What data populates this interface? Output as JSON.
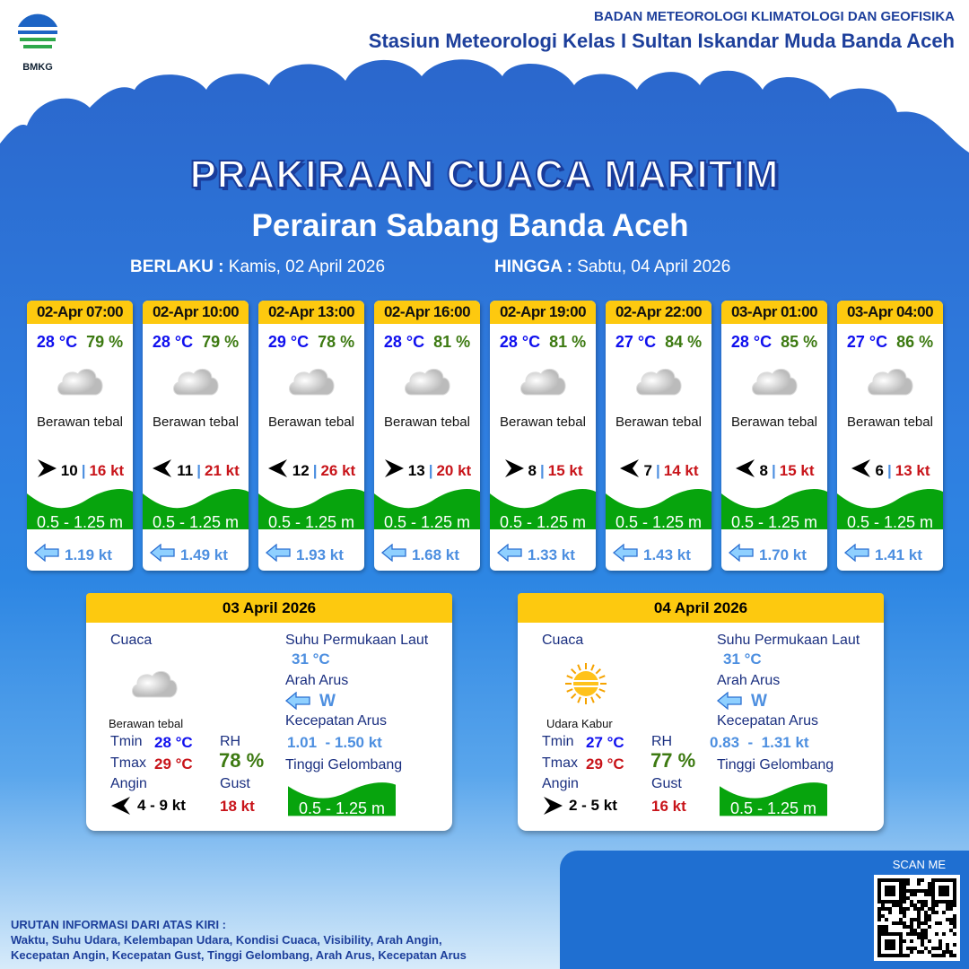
{
  "header": {
    "agency": "BADAN METEOROLOGI KLIMATOLOGI DAN GEOFISIKA",
    "station": "Stasiun Meteorologi Kelas I Sultan Iskandar Muda Banda Aceh",
    "logo_text": "BMKG"
  },
  "title": "PRAKIRAAN CUACA MARITIM",
  "subtitle": "Perairan Sabang Banda Aceh",
  "validity": {
    "from_label": "BERLAKU :",
    "from": "Kamis, 02 April 2026",
    "to_label": "HINGGA :",
    "to": "Sabtu, 04 April 2026"
  },
  "forecasts": [
    {
      "time": "02-Apr 07:00",
      "temp": "28 °C",
      "rh": "79 %",
      "icon": "cloud-icon",
      "cond": "Berawan tebal",
      "wind_dir": "right",
      "wind": "10",
      "gust": "16 kt",
      "wave": "0.5 - 1.25 m",
      "current": "1.19 kt"
    },
    {
      "time": "02-Apr 10:00",
      "temp": "28 °C",
      "rh": "79 %",
      "icon": "cloud-icon",
      "cond": "Berawan tebal",
      "wind_dir": "left",
      "wind": "11",
      "gust": "21 kt",
      "wave": "0.5 - 1.25 m",
      "current": "1.49 kt"
    },
    {
      "time": "02-Apr 13:00",
      "temp": "29 °C",
      "rh": "78 %",
      "icon": "cloud-icon",
      "cond": "Berawan tebal",
      "wind_dir": "left",
      "wind": "12",
      "gust": "26 kt",
      "wave": "0.5 - 1.25 m",
      "current": "1.93 kt"
    },
    {
      "time": "02-Apr 16:00",
      "temp": "28 °C",
      "rh": "81 %",
      "icon": "cloud-icon",
      "cond": "Berawan tebal",
      "wind_dir": "right",
      "wind": "13",
      "gust": "20 kt",
      "wave": "0.5 - 1.25 m",
      "current": "1.68 kt"
    },
    {
      "time": "02-Apr 19:00",
      "temp": "28 °C",
      "rh": "81 %",
      "icon": "cloud-icon",
      "cond": "Berawan tebal",
      "wind_dir": "right",
      "wind": "8",
      "gust": "15 kt",
      "wave": "0.5 - 1.25 m",
      "current": "1.33 kt"
    },
    {
      "time": "02-Apr 22:00",
      "temp": "27 °C",
      "rh": "84 %",
      "icon": "cloud-icon",
      "cond": "Berawan tebal",
      "wind_dir": "left",
      "wind": "7",
      "gust": "14 kt",
      "wave": "0.5 - 1.25 m",
      "current": "1.43 kt"
    },
    {
      "time": "03-Apr 01:00",
      "temp": "28 °C",
      "rh": "85 %",
      "icon": "cloud-icon",
      "cond": "Berawan tebal",
      "wind_dir": "left",
      "wind": "8",
      "gust": "15 kt",
      "wave": "0.5 - 1.25 m",
      "current": "1.70 kt"
    },
    {
      "time": "03-Apr 04:00",
      "temp": "27 °C",
      "rh": "86 %",
      "icon": "cloud-icon",
      "cond": "Berawan tebal",
      "wind_dir": "left",
      "wind": "6",
      "gust": "13 kt",
      "wave": "0.5 - 1.25 m",
      "current": "1.41 kt"
    }
  ],
  "labels": {
    "cuaca": "Cuaca",
    "sst": "Suhu Permukaan Laut",
    "arah": "Arah Arus",
    "kec": "Kecepatan Arus",
    "tinggi": "Tinggi Gelombang",
    "tmin": "Tmin",
    "tmax": "Tmax",
    "rh": "RH",
    "angin": "Angin",
    "gust": "Gust"
  },
  "days": [
    {
      "date": "03 April 2026",
      "icon": "cloud-icon",
      "cond": "Berawan tebal",
      "tmin": "28 °C",
      "tmax": "29 °C",
      "rh": "78 %",
      "wind_dir": "left",
      "wind": "4  - 9 kt",
      "gust": "18 kt",
      "sst": "31 °C",
      "current_dir": "W",
      "current_speed": "1.01  - 1.50 kt",
      "wave": "0.5 - 1.25 m"
    },
    {
      "date": "04 April 2026",
      "icon": "haze-sun-icon",
      "cond": "Udara Kabur",
      "tmin": "27 °C",
      "tmax": "29 °C",
      "rh": "77 %",
      "wind_dir": "right",
      "wind": "2  - 5 kt",
      "gust": "16 kt",
      "sst": "31 °C",
      "current_dir": "W",
      "current_speed": "0.83  -  1.31 kt",
      "wave": "0.5 - 1.25 m"
    }
  ],
  "scan_label": "SCAN ME",
  "footer": {
    "heading": "URUTAN INFORMASI DARI ATAS KIRI :",
    "line1": "Waktu, Suhu Udara, Kelembapan Udara, Kondisi Cuaca, Visibility, Arah Angin,",
    "line2": "Kecepatan Angin, Kecepatan Gust, Tinggi Gelombang, Arah Arus, Kecepatan Arus"
  },
  "colors": {
    "header_yellow": "#fdc90f",
    "wave_green": "#07a40d",
    "temp_blue": "#1010ee",
    "rh_green": "#3d7a12",
    "gust_red": "#c8141a",
    "current_blue": "#4d8fe0"
  }
}
